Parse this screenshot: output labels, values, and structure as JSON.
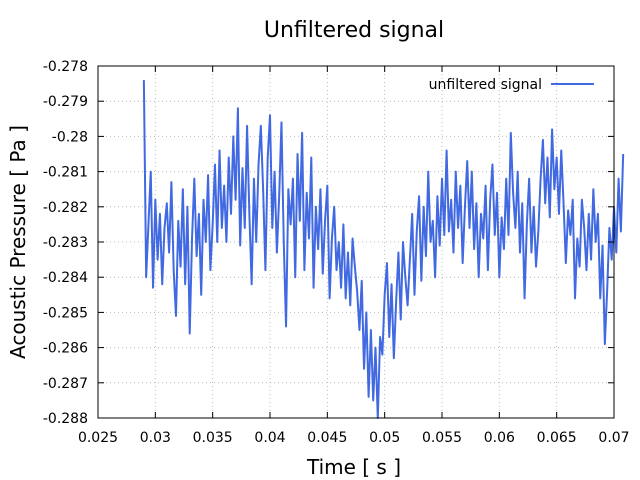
{
  "chart_data": {
    "type": "line",
    "title": "Unfiltered signal",
    "xlabel": "Time [ s ]",
    "ylabel": "Acoustic Pressure [ Pa ]",
    "xlim": [
      0.025,
      0.07
    ],
    "ylim": [
      -0.288,
      -0.278
    ],
    "x_ticks": [
      0.025,
      0.03,
      0.035,
      0.04,
      0.045,
      0.05,
      0.055,
      0.06,
      0.065,
      0.07
    ],
    "x_tick_labels": [
      "0.025",
      "0.03",
      "0.035",
      "0.04",
      "0.045",
      "0.05",
      "0.055",
      "0.06",
      "0.065",
      "0.07"
    ],
    "y_ticks": [
      -0.288,
      -0.287,
      -0.286,
      -0.285,
      -0.284,
      -0.283,
      -0.282,
      -0.281,
      -0.28,
      -0.279,
      -0.278
    ],
    "y_tick_labels": [
      "-0.288",
      "-0.287",
      "-0.286",
      "-0.285",
      "-0.284",
      "-0.283",
      "-0.282",
      "-0.281",
      "-0.28",
      "-0.279",
      "-0.278"
    ],
    "grid": true,
    "legend_position": "top-right",
    "series": [
      {
        "name": "unfiltered signal",
        "color": "#4169e1",
        "x_start": 0.029,
        "x_step": 0.0002,
        "values": [
          -0.2784,
          -0.284,
          -0.2825,
          -0.281,
          -0.2843,
          -0.2818,
          -0.2835,
          -0.2822,
          -0.2842,
          -0.2826,
          -0.2819,
          -0.2833,
          -0.2813,
          -0.2838,
          -0.2851,
          -0.2824,
          -0.2837,
          -0.2815,
          -0.2842,
          -0.282,
          -0.2856,
          -0.2829,
          -0.2812,
          -0.2834,
          -0.2822,
          -0.2845,
          -0.2818,
          -0.283,
          -0.2811,
          -0.2838,
          -0.2825,
          -0.2808,
          -0.283,
          -0.2804,
          -0.2826,
          -0.2814,
          -0.283,
          -0.2806,
          -0.2822,
          -0.28,
          -0.2818,
          -0.2792,
          -0.2831,
          -0.2809,
          -0.2826,
          -0.2797,
          -0.2822,
          -0.2842,
          -0.2812,
          -0.283,
          -0.2808,
          -0.2797,
          -0.2815,
          -0.2838,
          -0.2806,
          -0.2794,
          -0.2826,
          -0.281,
          -0.2833,
          -0.2817,
          -0.2796,
          -0.283,
          -0.2854,
          -0.2815,
          -0.2825,
          -0.2812,
          -0.284,
          -0.2805,
          -0.2824,
          -0.2799,
          -0.2838,
          -0.2816,
          -0.2829,
          -0.2806,
          -0.2843,
          -0.282,
          -0.2832,
          -0.2815,
          -0.2839,
          -0.2824,
          -0.2814,
          -0.2846,
          -0.2829,
          -0.282,
          -0.2838,
          -0.283,
          -0.2843,
          -0.2825,
          -0.2846,
          -0.2833,
          -0.2848,
          -0.2829,
          -0.2837,
          -0.2844,
          -0.2855,
          -0.2841,
          -0.2866,
          -0.285,
          -0.2874,
          -0.2855,
          -0.2875,
          -0.286,
          -0.288,
          -0.2857,
          -0.2862,
          -0.2845,
          -0.2836,
          -0.2857,
          -0.2842,
          -0.2863,
          -0.2847,
          -0.2833,
          -0.2852,
          -0.283,
          -0.284,
          -0.2848,
          -0.2835,
          -0.2822,
          -0.2845,
          -0.2827,
          -0.2817,
          -0.2841,
          -0.282,
          -0.2834,
          -0.281,
          -0.283,
          -0.2824,
          -0.284,
          -0.2817,
          -0.2831,
          -0.2812,
          -0.2828,
          -0.2804,
          -0.2827,
          -0.2818,
          -0.2833,
          -0.281,
          -0.2826,
          -0.2814,
          -0.2836,
          -0.282,
          -0.2807,
          -0.2826,
          -0.281,
          -0.2832,
          -0.2819,
          -0.284,
          -0.2822,
          -0.2829,
          -0.2814,
          -0.2838,
          -0.2818,
          -0.2808,
          -0.2828,
          -0.2816,
          -0.284,
          -0.2823,
          -0.2832,
          -0.2812,
          -0.2828,
          -0.2799,
          -0.2816,
          -0.2826,
          -0.281,
          -0.2833,
          -0.2819,
          -0.2846,
          -0.2825,
          -0.2812,
          -0.2833,
          -0.282,
          -0.2837,
          -0.2827,
          -0.2812,
          -0.2801,
          -0.2819,
          -0.2806,
          -0.2823,
          -0.2798,
          -0.2815,
          -0.2806,
          -0.2822,
          -0.2804,
          -0.2819,
          -0.2836,
          -0.2821,
          -0.2828,
          -0.2818,
          -0.2846,
          -0.2829,
          -0.2837,
          -0.2818,
          -0.2826,
          -0.2838,
          -0.2822,
          -0.2835,
          -0.2815,
          -0.283,
          -0.2822,
          -0.2846,
          -0.2831,
          -0.2859,
          -0.2844,
          -0.2826,
          -0.2835,
          -0.282,
          -0.2833,
          -0.2812,
          -0.2827,
          -0.2805
        ]
      }
    ]
  }
}
